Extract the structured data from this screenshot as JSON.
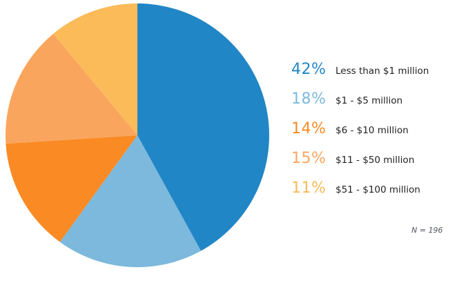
{
  "chart_data": {
    "type": "pie",
    "title": "",
    "start_angle_deg": 0,
    "direction": "clockwise",
    "legend_position": "right",
    "slices": [
      {
        "label": "Less than $1 million",
        "value": 42,
        "pct_label": "42%",
        "color": "#2186c6"
      },
      {
        "label": "$1 - $5 million",
        "value": 18,
        "pct_label": "18%",
        "color": "#7cb9dc"
      },
      {
        "label": "$6 - $10 million",
        "value": 14,
        "pct_label": "14%",
        "color": "#fa8a24"
      },
      {
        "label": "$11 - $50 million",
        "value": 15,
        "pct_label": "15%",
        "color": "#faa55e"
      },
      {
        "label": "$51 - $100 million",
        "value": 11,
        "pct_label": "11%",
        "color": "#fabb58"
      }
    ],
    "note": "N = 196"
  }
}
